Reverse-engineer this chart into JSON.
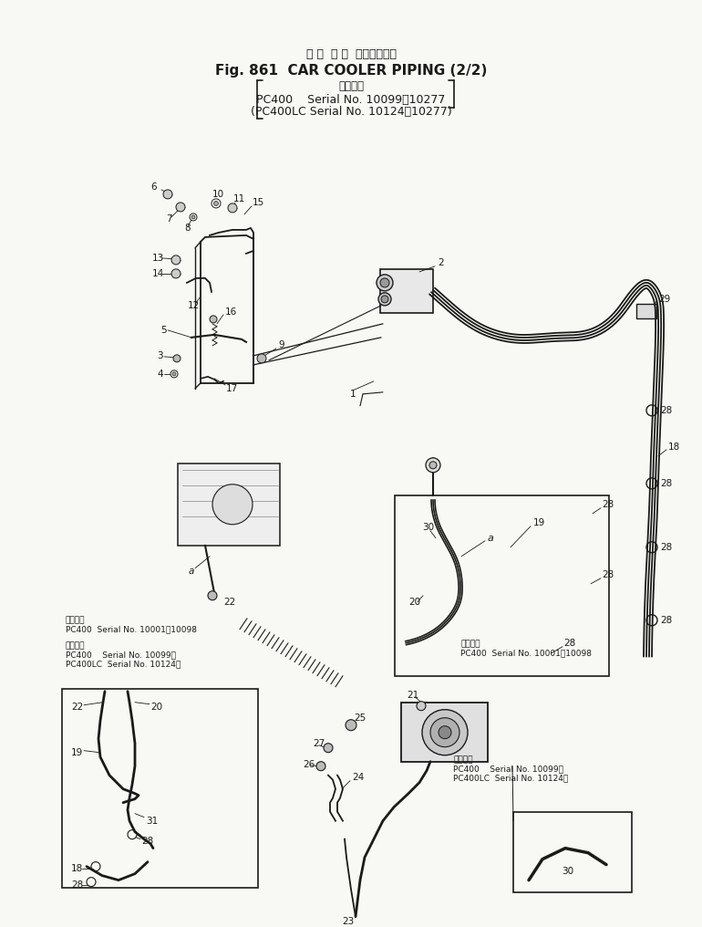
{
  "bg": "#f8f8f4",
  "lc": "#1a1a1a",
  "title_jp": "カ ー  ク ー  ラパイピング",
  "title_en": "Fig. 861  CAR COOLER PIPING (2/2)",
  "app_lbl": "適用号機",
  "sub1": "PC400    Serial No. 10099～10277",
  "sub2": "(PC400LC Serial No. 10124～10277)",
  "ser_1_10098": "PC400  Serial No. 10001～10098",
  "ser_1_lbl": "適用号機",
  "ser_2_lbl": "適用号機",
  "ser_2a": "PC400    Serial No. 10099～",
  "ser_2b": "PC400LC  Serial No. 10124～",
  "ser_3_lbl": "適用号機",
  "ser_3_10098": "PC400  Serial No. 10001～10098",
  "ser_4_lbl": "適用号機",
  "ser_4a": "PC400    Serial No. 10099～",
  "ser_4b": "PC400LC  Serial No. 10124～"
}
